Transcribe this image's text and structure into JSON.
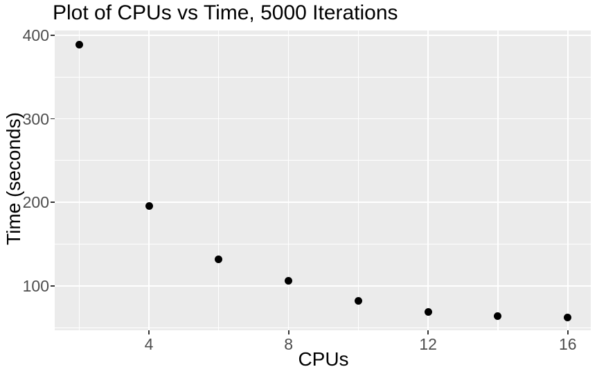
{
  "chart_data": {
    "type": "scatter",
    "title": "Plot of CPUs vs Time, 5000 Iterations",
    "xlabel": "CPUs",
    "ylabel": "Time (seconds)",
    "x": [
      2,
      4,
      6,
      8,
      10,
      12,
      14,
      16
    ],
    "y": [
      389,
      196,
      132,
      106,
      82,
      69,
      64,
      62
    ],
    "xlim": [
      1.3,
      16.66
    ],
    "ylim": [
      46.8,
      405.8
    ],
    "x_major_ticks": [
      4,
      8,
      12,
      16
    ],
    "x_tick_labels": [
      "4",
      "8",
      "12",
      "16"
    ],
    "x_minor_gridlines": [
      2,
      6,
      10,
      14
    ],
    "y_major_ticks": [
      100,
      200,
      300,
      400
    ],
    "y_tick_labels": [
      "100",
      "200",
      "300",
      "400"
    ],
    "y_minor_gridlines": [
      50,
      150,
      250,
      350
    ],
    "legend": "none",
    "grid": "major and minor, white lines on gray panel",
    "style": {
      "panel_bg": "#EBEBEB",
      "grid_color": "#FFFFFF",
      "point_color": "#000000",
      "tick_label_color": "#4D4D4D",
      "tick_mark_color": "#333333",
      "title_color": "#000000",
      "axis_title_color": "#000000",
      "outer_bg": "#FFFFFF"
    }
  }
}
